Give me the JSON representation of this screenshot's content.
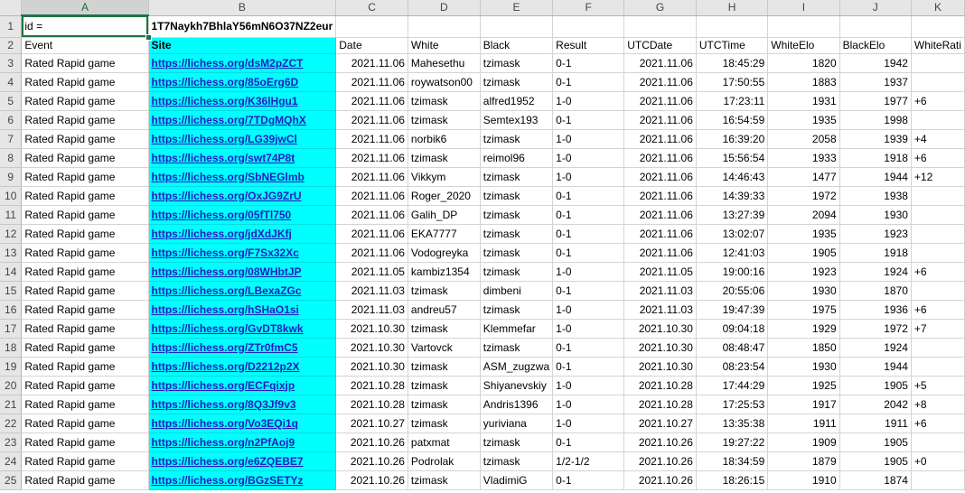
{
  "columns": [
    "A",
    "B",
    "C",
    "D",
    "E",
    "F",
    "G",
    "H",
    "I",
    "J",
    "K"
  ],
  "row1": {
    "num": "1",
    "a": "id =",
    "b": "1T7Naykh7BhlaY56mN6O37NZ2eur"
  },
  "header": {
    "num": "2",
    "cells": [
      "Event",
      "Site",
      "Date",
      "White",
      "Black",
      "Result",
      "UTCDate",
      "UTCTime",
      "WhiteElo",
      "BlackElo",
      "WhiteRati"
    ]
  },
  "rows": [
    {
      "num": "3",
      "event": "Rated Rapid game",
      "site": "https://lichess.org/dsM2pZCT",
      "date": "2021.11.06",
      "white": "Mahesethu",
      "black": "tzimask",
      "result": "0-1",
      "utcdate": "2021.11.06",
      "utctime": "18:45:29",
      "welo": "1820",
      "belo": "1942",
      "wrd": ""
    },
    {
      "num": "4",
      "event": "Rated Rapid game",
      "site": "https://lichess.org/85oErg6D",
      "date": "2021.11.06",
      "white": "roywatson00",
      "black": "tzimask",
      "result": "0-1",
      "utcdate": "2021.11.06",
      "utctime": "17:50:55",
      "welo": "1883",
      "belo": "1937",
      "wrd": ""
    },
    {
      "num": "5",
      "event": "Rated Rapid game",
      "site": "https://lichess.org/K36lHgu1",
      "date": "2021.11.06",
      "white": "tzimask",
      "black": "alfred1952",
      "result": "1-0",
      "utcdate": "2021.11.06",
      "utctime": "17:23:11",
      "welo": "1931",
      "belo": "1977",
      "wrd": "+6"
    },
    {
      "num": "6",
      "event": "Rated Rapid game",
      "site": "https://lichess.org/7TDgMQhX",
      "date": "2021.11.06",
      "white": "tzimask",
      "black": "Semtex193",
      "result": "0-1",
      "utcdate": "2021.11.06",
      "utctime": "16:54:59",
      "welo": "1935",
      "belo": "1998",
      "wrd": ""
    },
    {
      "num": "7",
      "event": "Rated Rapid game",
      "site": "https://lichess.org/LG39jwCl",
      "date": "2021.11.06",
      "white": "norbik6",
      "black": "tzimask",
      "result": "1-0",
      "utcdate": "2021.11.06",
      "utctime": "16:39:20",
      "welo": "2058",
      "belo": "1939",
      "wrd": "+4"
    },
    {
      "num": "8",
      "event": "Rated Rapid game",
      "site": "https://lichess.org/swt74P8t",
      "date": "2021.11.06",
      "white": "tzimask",
      "black": "reimol96",
      "result": "1-0",
      "utcdate": "2021.11.06",
      "utctime": "15:56:54",
      "welo": "1933",
      "belo": "1918",
      "wrd": "+6"
    },
    {
      "num": "9",
      "event": "Rated Rapid game",
      "site": "https://lichess.org/SbNEGlmb",
      "date": "2021.11.06",
      "white": "Vikkym",
      "black": "tzimask",
      "result": "1-0",
      "utcdate": "2021.11.06",
      "utctime": "14:46:43",
      "welo": "1477",
      "belo": "1944",
      "wrd": "+12"
    },
    {
      "num": "10",
      "event": "Rated Rapid game",
      "site": "https://lichess.org/OxJG9ZrU",
      "date": "2021.11.06",
      "white": "Roger_2020",
      "black": "tzimask",
      "result": "0-1",
      "utcdate": "2021.11.06",
      "utctime": "14:39:33",
      "welo": "1972",
      "belo": "1938",
      "wrd": ""
    },
    {
      "num": "11",
      "event": "Rated Rapid game",
      "site": "https://lichess.org/05fTl750",
      "date": "2021.11.06",
      "white": "Galih_DP",
      "black": "tzimask",
      "result": "0-1",
      "utcdate": "2021.11.06",
      "utctime": "13:27:39",
      "welo": "2094",
      "belo": "1930",
      "wrd": ""
    },
    {
      "num": "12",
      "event": "Rated Rapid game",
      "site": "https://lichess.org/jdXdJKfj",
      "date": "2021.11.06",
      "white": "EKA7777",
      "black": "tzimask",
      "result": "0-1",
      "utcdate": "2021.11.06",
      "utctime": "13:02:07",
      "welo": "1935",
      "belo": "1923",
      "wrd": ""
    },
    {
      "num": "13",
      "event": "Rated Rapid game",
      "site": "https://lichess.org/F7Sx32Xc",
      "date": "2021.11.06",
      "white": "Vodogreyka",
      "black": "tzimask",
      "result": "0-1",
      "utcdate": "2021.11.06",
      "utctime": "12:41:03",
      "welo": "1905",
      "belo": "1918",
      "wrd": ""
    },
    {
      "num": "14",
      "event": "Rated Rapid game",
      "site": "https://lichess.org/08WHbtJP",
      "date": "2021.11.05",
      "white": "kambiz1354",
      "black": "tzimask",
      "result": "1-0",
      "utcdate": "2021.11.05",
      "utctime": "19:00:16",
      "welo": "1923",
      "belo": "1924",
      "wrd": "+6"
    },
    {
      "num": "15",
      "event": "Rated Rapid game",
      "site": "https://lichess.org/LBexaZGc",
      "date": "2021.11.03",
      "white": "tzimask",
      "black": "dimbeni",
      "result": "0-1",
      "utcdate": "2021.11.03",
      "utctime": "20:55:06",
      "welo": "1930",
      "belo": "1870",
      "wrd": ""
    },
    {
      "num": "16",
      "event": "Rated Rapid game",
      "site": "https://lichess.org/hSHaO1si",
      "date": "2021.11.03",
      "white": "andreu57",
      "black": "tzimask",
      "result": "1-0",
      "utcdate": "2021.11.03",
      "utctime": "19:47:39",
      "welo": "1975",
      "belo": "1936",
      "wrd": "+6"
    },
    {
      "num": "17",
      "event": "Rated Rapid game",
      "site": "https://lichess.org/GvDT8kwk",
      "date": "2021.10.30",
      "white": "tzimask",
      "black": "Klemmefar",
      "result": "1-0",
      "utcdate": "2021.10.30",
      "utctime": "09:04:18",
      "welo": "1929",
      "belo": "1972",
      "wrd": "+7"
    },
    {
      "num": "18",
      "event": "Rated Rapid game",
      "site": "https://lichess.org/ZTr0fmC5",
      "date": "2021.10.30",
      "white": "Vartovck",
      "black": "tzimask",
      "result": "0-1",
      "utcdate": "2021.10.30",
      "utctime": "08:48:47",
      "welo": "1850",
      "belo": "1924",
      "wrd": ""
    },
    {
      "num": "19",
      "event": "Rated Rapid game",
      "site": "https://lichess.org/D2212p2X",
      "date": "2021.10.30",
      "white": "tzimask",
      "black": "ASM_zugzwa",
      "result": "0-1",
      "utcdate": "2021.10.30",
      "utctime": "08:23:54",
      "welo": "1930",
      "belo": "1944",
      "wrd": ""
    },
    {
      "num": "20",
      "event": "Rated Rapid game",
      "site": "https://lichess.org/ECFqixjp",
      "date": "2021.10.28",
      "white": "tzimask",
      "black": "Shiyanevskiy",
      "result": "1-0",
      "utcdate": "2021.10.28",
      "utctime": "17:44:29",
      "welo": "1925",
      "belo": "1905",
      "wrd": "+5"
    },
    {
      "num": "21",
      "event": "Rated Rapid game",
      "site": "https://lichess.org/8Q3Jf9v3",
      "date": "2021.10.28",
      "white": "tzimask",
      "black": "Andris1396",
      "result": "1-0",
      "utcdate": "2021.10.28",
      "utctime": "17:25:53",
      "welo": "1917",
      "belo": "2042",
      "wrd": "+8"
    },
    {
      "num": "22",
      "event": "Rated Rapid game",
      "site": "https://lichess.org/Vo3EQi1q",
      "date": "2021.10.27",
      "white": "tzimask",
      "black": "yuriviana",
      "result": "1-0",
      "utcdate": "2021.10.27",
      "utctime": "13:35:38",
      "welo": "1911",
      "belo": "1911",
      "wrd": "+6"
    },
    {
      "num": "23",
      "event": "Rated Rapid game",
      "site": "https://lichess.org/n2PfAoj9",
      "date": "2021.10.26",
      "white": "patxmat",
      "black": "tzimask",
      "result": "0-1",
      "utcdate": "2021.10.26",
      "utctime": "19:27:22",
      "welo": "1909",
      "belo": "1905",
      "wrd": ""
    },
    {
      "num": "24",
      "event": "Rated Rapid game",
      "site": "https://lichess.org/e6ZQEBE7",
      "date": "2021.10.26",
      "white": "Podrolak",
      "black": "tzimask",
      "result": "1/2-1/2",
      "utcdate": "2021.10.26",
      "utctime": "18:34:59",
      "welo": "1879",
      "belo": "1905",
      "wrd": "+0"
    },
    {
      "num": "25",
      "event": "Rated Rapid game",
      "site": "https://lichess.org/BGzSETYz",
      "date": "2021.10.26",
      "white": "tzimask",
      "black": "VladimiG",
      "result": "0-1",
      "utcdate": "2021.10.26",
      "utctime": "18:26:15",
      "welo": "1910",
      "belo": "1874",
      "wrd": ""
    }
  ]
}
